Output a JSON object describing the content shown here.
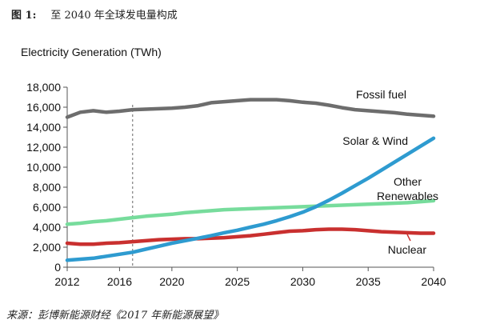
{
  "figure": {
    "number_label": "图 1:",
    "title": "至 2040 年全球发电量构成",
    "source": "来源：彭博新能源财经《2017 年新能源展望》"
  },
  "chart_data": {
    "type": "line",
    "ylabel": "Electricity Generation (TWh)",
    "xlim": [
      2012,
      2040
    ],
    "ylim": [
      0,
      18000
    ],
    "x_ticks": [
      "2012",
      "2016",
      "2020",
      "2025",
      "2030",
      "2035",
      "2040"
    ],
    "x_tick_values": [
      2012,
      2016,
      2020,
      2025,
      2030,
      2035,
      2040
    ],
    "y_ticks": [
      "0",
      "2,000",
      "4,000",
      "6,000",
      "8,000",
      "10,000",
      "12,000",
      "14,000",
      "16,000",
      "18,000"
    ],
    "y_tick_values": [
      0,
      2000,
      4000,
      6000,
      8000,
      10000,
      12000,
      14000,
      16000,
      18000
    ],
    "reference_line_x": 2017,
    "grid": false,
    "x": [
      2012,
      2013,
      2014,
      2015,
      2016,
      2017,
      2018,
      2019,
      2020,
      2021,
      2022,
      2023,
      2024,
      2025,
      2026,
      2027,
      2028,
      2029,
      2030,
      2031,
      2032,
      2033,
      2034,
      2035,
      2036,
      2037,
      2038,
      2039,
      2040
    ],
    "series": [
      {
        "name": "Fossil fuel",
        "color": "#6d6d6d",
        "values": [
          15000,
          15500,
          15650,
          15500,
          15600,
          15750,
          15800,
          15850,
          15900,
          16000,
          16150,
          16450,
          16550,
          16650,
          16750,
          16750,
          16750,
          16650,
          16500,
          16400,
          16200,
          15950,
          15750,
          15650,
          15550,
          15450,
          15300,
          15200,
          15100
        ]
      },
      {
        "name": "Solar & Wind",
        "color": "#2e9bd0",
        "values": [
          700,
          800,
          900,
          1100,
          1300,
          1500,
          1800,
          2100,
          2400,
          2650,
          2900,
          3150,
          3450,
          3700,
          4000,
          4300,
          4650,
          5050,
          5500,
          6050,
          6700,
          7400,
          8150,
          8900,
          9700,
          10500,
          11300,
          12100,
          12900
        ]
      },
      {
        "name": "Other Renewables",
        "color": "#77dc9c",
        "values": [
          4300,
          4400,
          4550,
          4650,
          4800,
          4950,
          5100,
          5200,
          5300,
          5450,
          5550,
          5650,
          5750,
          5800,
          5850,
          5900,
          5950,
          6000,
          6050,
          6100,
          6150,
          6200,
          6250,
          6300,
          6350,
          6400,
          6450,
          6550,
          6650
        ]
      },
      {
        "name": "Nuclear",
        "color": "#c9302f",
        "values": [
          2400,
          2300,
          2300,
          2400,
          2450,
          2550,
          2650,
          2750,
          2800,
          2850,
          2850,
          2900,
          2950,
          3050,
          3150,
          3300,
          3450,
          3600,
          3650,
          3750,
          3800,
          3800,
          3750,
          3650,
          3550,
          3500,
          3450,
          3400,
          3400
        ]
      }
    ],
    "series_labels": [
      "Fossil fuel",
      "Solar & Wind",
      "Other",
      "Renewables",
      "Nuclear"
    ]
  }
}
